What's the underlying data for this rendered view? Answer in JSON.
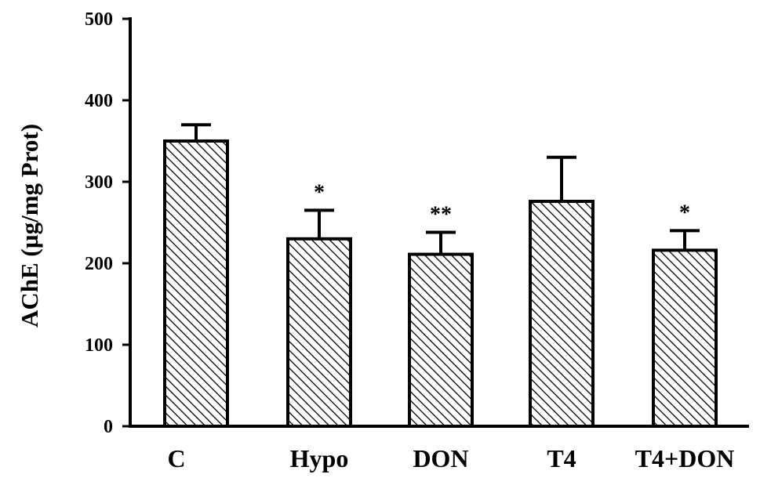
{
  "chart_data": {
    "type": "bar",
    "categories": [
      "C",
      "Hypo",
      "DON",
      "T4",
      "T4+DON"
    ],
    "values": [
      350,
      230,
      211,
      276,
      216
    ],
    "errors": [
      20,
      35,
      27,
      54,
      24
    ],
    "significance": [
      "",
      "*",
      "**",
      "",
      "*"
    ],
    "ylabel": "AChE (µg/mg Prot)",
    "xlabel": "",
    "title": "",
    "ylim": [
      0,
      500
    ],
    "yticks": [
      0,
      100,
      200,
      300,
      400,
      500
    ],
    "grid": false,
    "legend": "none",
    "bar_fill": "diagonal-hatch",
    "colors": {
      "bar_stroke": "#000000",
      "hatch": "#000000",
      "background": "#ffffff"
    }
  }
}
